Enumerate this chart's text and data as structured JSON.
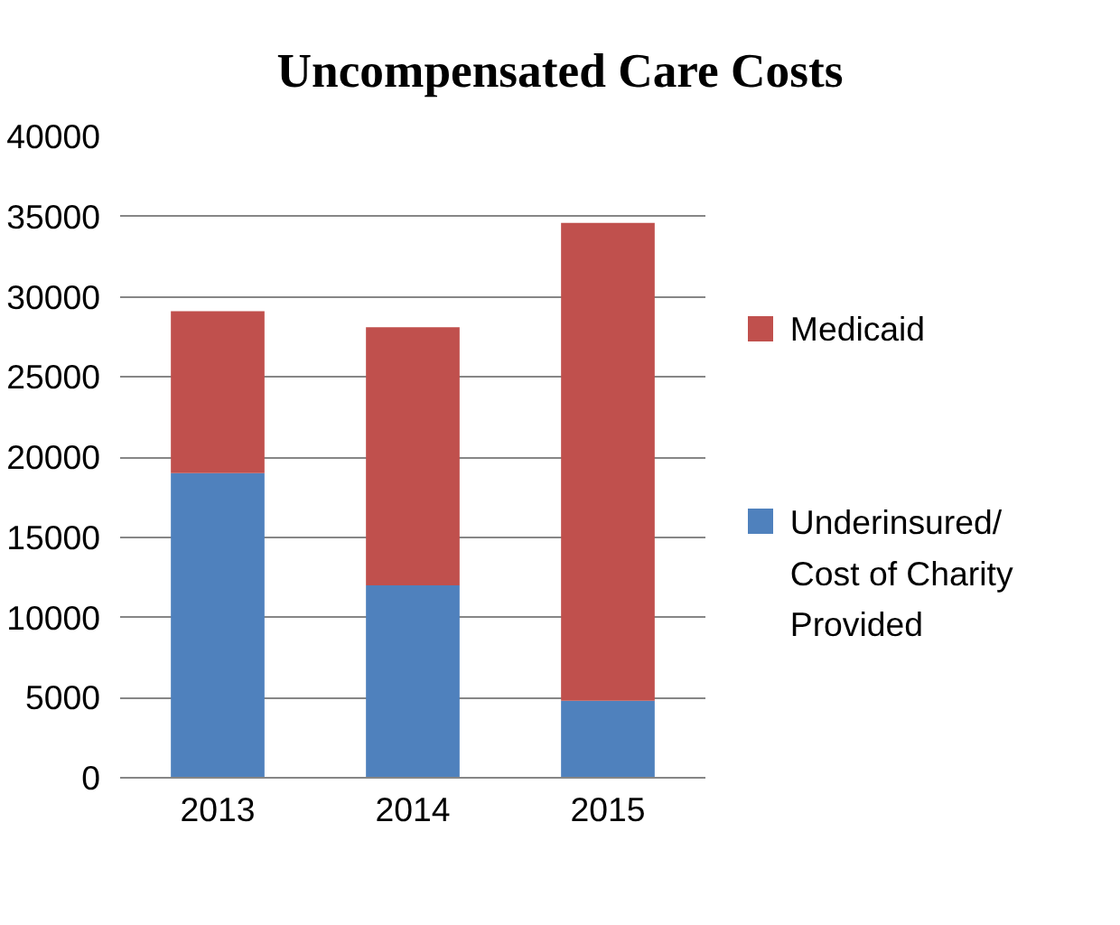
{
  "chart_data": {
    "type": "bar",
    "title": "Uncompensated Care Costs",
    "categories": [
      "2013",
      "2014",
      "2015"
    ],
    "stacked": true,
    "series": [
      {
        "name": "Underinsured/ Cost of Charity Provided",
        "color": "#4f81bd",
        "values": [
          19000,
          12000,
          4800
        ]
      },
      {
        "name": "Medicaid",
        "color": "#c0504d",
        "values": [
          10100,
          16100,
          29800
        ]
      }
    ],
    "ylim": [
      0,
      40000
    ],
    "yticks": [
      0,
      5000,
      10000,
      15000,
      20000,
      25000,
      30000,
      35000,
      40000
    ],
    "grid": "y",
    "legend": "right"
  }
}
